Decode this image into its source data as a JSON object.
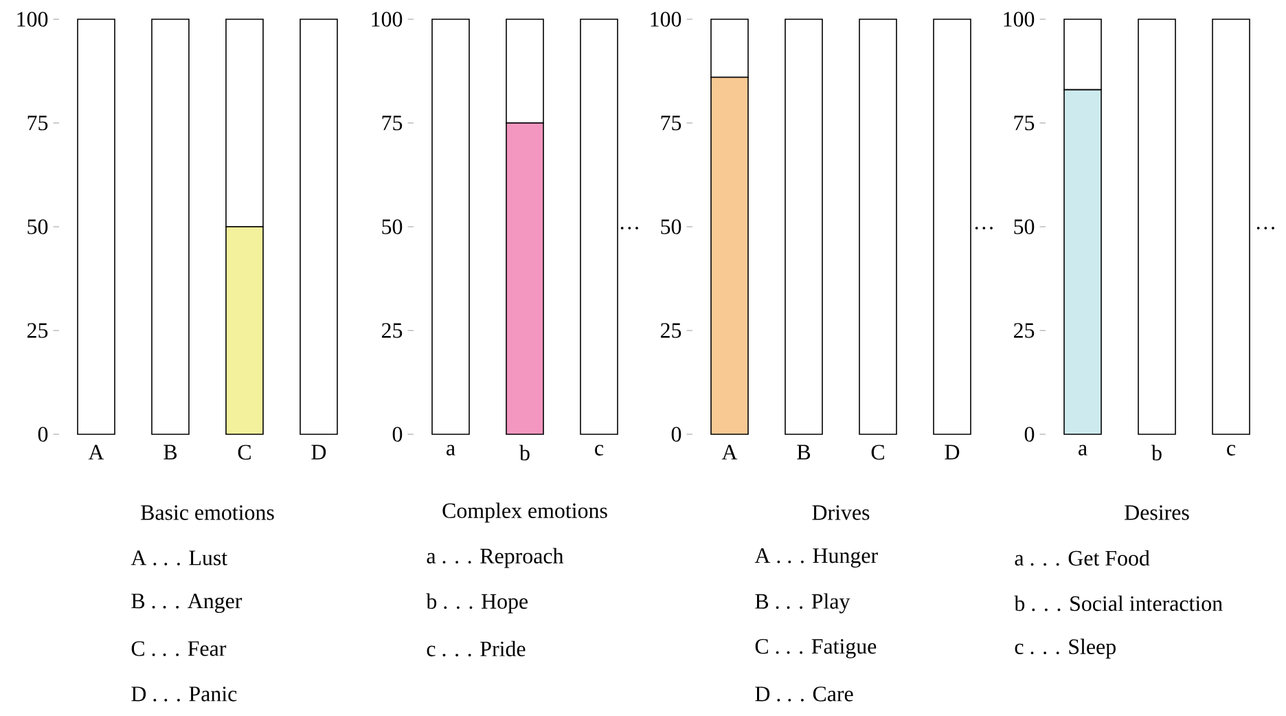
{
  "chart_data": [
    {
      "type": "bar",
      "stacked": true,
      "xlabel": "Basic emotions",
      "categories": [
        "A",
        "B",
        "C",
        "D"
      ],
      "ylim": [
        0,
        100
      ],
      "yticks": [
        0,
        25,
        50,
        75,
        100
      ],
      "series": [
        {
          "color": "#f3f19c",
          "values": [
            0,
            0,
            50,
            0
          ]
        },
        {
          "color": "#ffffff",
          "values": [
            100,
            100,
            50,
            100
          ]
        }
      ],
      "annotations": [
        "A . . . Lust",
        "B . . . Anger",
        "C . . . Fear",
        "D . . . Panic"
      ]
    },
    {
      "type": "bar",
      "stacked": true,
      "xlabel": "Complex emotions",
      "categories": [
        "a",
        "b",
        "c"
      ],
      "ylim": [
        0,
        100
      ],
      "yticks": [
        0,
        25,
        50,
        75,
        100
      ],
      "series": [
        {
          "color": "#f497c0",
          "values": [
            0,
            75,
            0
          ]
        },
        {
          "color": "#ffffff",
          "values": [
            100,
            25,
            100
          ]
        }
      ],
      "annotations": [
        "a . . . Reproach",
        "b . . . Hope",
        "c . . . Pride"
      ]
    },
    {
      "type": "bar",
      "stacked": true,
      "xlabel": "Drives",
      "categories": [
        "A",
        "B",
        "C",
        "D"
      ],
      "ylim": [
        0,
        100
      ],
      "yticks": [
        0,
        25,
        50,
        75,
        100
      ],
      "series": [
        {
          "color": "#f9c994",
          "values": [
            86,
            0,
            0,
            0
          ]
        },
        {
          "color": "#ffffff",
          "values": [
            14,
            100,
            100,
            100
          ]
        }
      ],
      "annotations": [
        "A . . . Hunger",
        "B . . . Play",
        "C . . . Fatigue",
        "D . . . Care",
        "…"
      ]
    },
    {
      "type": "bar",
      "stacked": true,
      "xlabel": "Desires",
      "categories": [
        "a",
        "b",
        "c"
      ],
      "ylim": [
        0,
        100
      ],
      "yticks": [
        0,
        25,
        50,
        75,
        100
      ],
      "series": [
        {
          "color": "#cdebee",
          "values": [
            83,
            0,
            0
          ]
        },
        {
          "color": "#ffffff",
          "values": [
            17,
            100,
            100
          ]
        }
      ],
      "annotations": [
        "a . . . Get Food",
        "b . . . Social interaction",
        "c . . . Sleep",
        "…",
        "…"
      ]
    }
  ]
}
